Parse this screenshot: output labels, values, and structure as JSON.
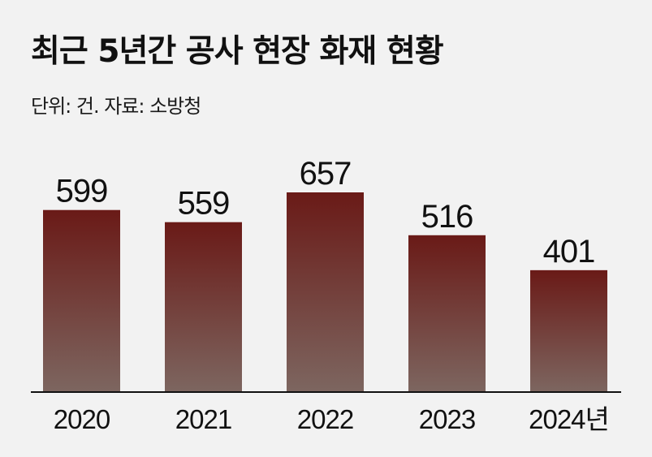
{
  "header": {
    "title": "최근 5년간 공사 현장 화재 현황",
    "subtitle": "단위: 건. 자료: 소방청"
  },
  "colors": {
    "background": "#f2f2f2",
    "bar_top": "#6a1a17",
    "bar_bottom": "#7d6660",
    "baseline": "#111111"
  },
  "chart_data": {
    "type": "bar",
    "categories": [
      "2020",
      "2021",
      "2022",
      "2023",
      "2024년"
    ],
    "values": [
      599,
      559,
      657,
      516,
      401
    ],
    "title": "최근 5년간 공사 현장 화재 현황",
    "subtitle": "단위: 건. 자료: 소방청",
    "xlabel": "",
    "ylabel": "",
    "ylim": [
      0,
      657
    ],
    "grid": false,
    "legend": "none",
    "data_labels": true
  }
}
